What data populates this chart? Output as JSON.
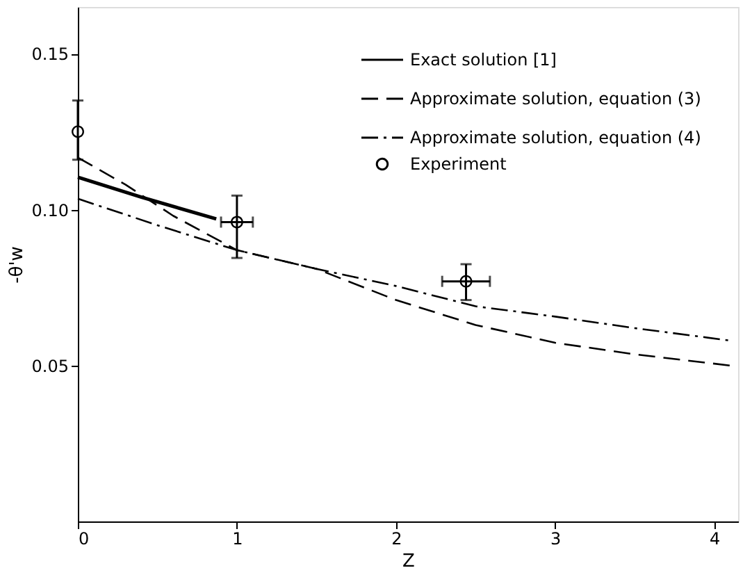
{
  "chart_data": {
    "type": "line",
    "xlabel": "Z",
    "ylabel": "-θ'w",
    "xlim": [
      0,
      4.15
    ],
    "ylim": [
      0,
      0.165
    ],
    "xticks": [
      0,
      1,
      2,
      3,
      4
    ],
    "yticks": [
      {
        "value": 0.05,
        "label": "0.05"
      },
      {
        "value": 0.1,
        "label": "0.10"
      },
      {
        "value": 0.15,
        "label": "0.15"
      }
    ],
    "grid": false,
    "legend": "top right",
    "series": [
      {
        "name": "Exact solution [1]",
        "line_style": "solid",
        "color": "#000000",
        "x": [
          0,
          0.4,
          0.87
        ],
        "values": [
          0.1104,
          0.104,
          0.097
        ]
      },
      {
        "name": "Approximate solution,  equation (3)",
        "line_style": "dashed",
        "color": "#000000",
        "x": [
          0,
          0.3,
          0.6,
          1,
          1.5,
          2,
          2.5,
          3,
          3.5,
          4.1
        ],
        "values": [
          0.1167,
          0.108,
          0.098,
          0.087,
          0.081,
          0.071,
          0.063,
          0.0573,
          0.0536,
          0.05
        ]
      },
      {
        "name": "Approximate solution,  equation (4)",
        "line_style": "dashdot",
        "color": "#000000",
        "x": [
          0,
          0.5,
          1,
          1.5,
          2,
          2.5,
          3,
          3.5,
          4.1
        ],
        "values": [
          0.1035,
          0.095,
          0.087,
          0.081,
          0.0755,
          0.069,
          0.0657,
          0.062,
          0.058
        ]
      },
      {
        "name": "Experiment",
        "type": "scatter",
        "marker": "circle",
        "color": "#000000",
        "x": [
          0,
          1,
          2.44
        ],
        "values": [
          0.125,
          0.096,
          0.077
        ],
        "errors": [
          [
            0.116,
            0.135
          ],
          [
            0.0845,
            0.1045
          ],
          [
            0.071,
            0.0825
          ]
        ],
        "xerrors": [
          null,
          0.1,
          0.15
        ]
      }
    ]
  }
}
